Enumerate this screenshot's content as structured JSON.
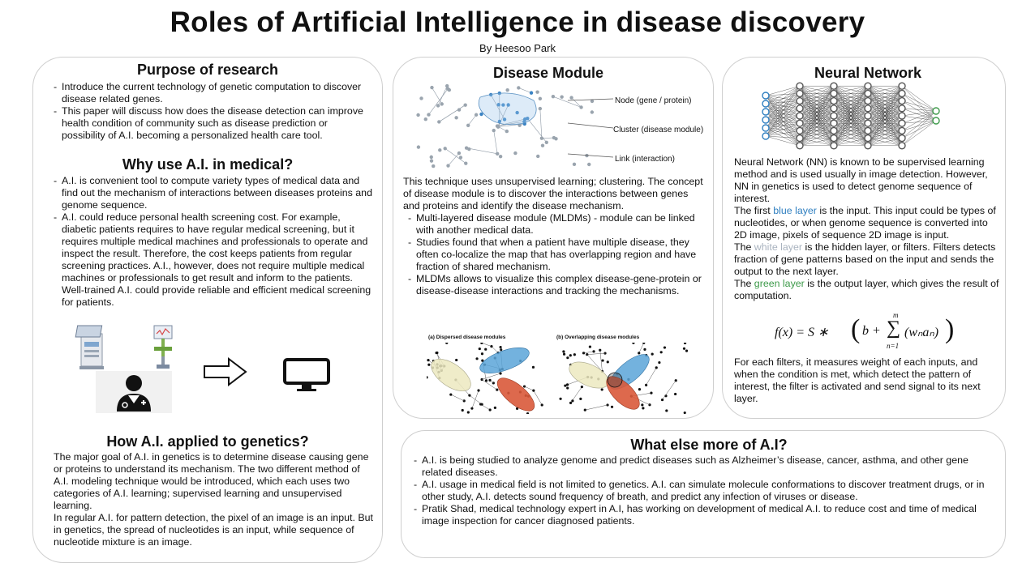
{
  "poster": {
    "title": "Roles of Artificial Intelligence in disease discovery",
    "author": "By Heesoo Park"
  },
  "purpose": {
    "heading": "Purpose of research",
    "items": [
      "Introduce the current technology of genetic computation to discover disease related genes.",
      "This paper will discuss how does the disease detection can improve health condition of community such as disease prediction or possibility of A.I. becoming a personalized health care tool."
    ]
  },
  "why": {
    "heading": "Why use A.I. in medical?",
    "items": [
      "A.I. is convenient tool to compute variety types of medical data and find out the mechanism of interactions between diseases proteins and genome sequence.",
      "A.I. could reduce personal health screening cost. For example, diabetic patients requires to have regular medical screening, but it requires multiple medical machines and professionals to operate and inspect the result. Therefore, the cost keeps patients from regular screening practices. A.I., however, does not require multiple medical machines or professionals to get result and inform to the patients. Well-trained A.I. could provide reliable and efficient medical screening for patients."
    ],
    "icons": [
      "medical-machine-icon",
      "doctor-icon",
      "right-arrow-icon",
      "computer-monitor-icon"
    ]
  },
  "genetics": {
    "heading": "How A.I. applied to genetics?",
    "paragraphs": [
      "The major goal of A.I. in genetics is to determine disease causing gene or proteins to understand its mechanism. The two different method of A.I. modeling technique would be introduced, which each uses two categories of A.I. learning; supervised learning and unsupervised learning.",
      "In regular A.I. for pattern detection, the pixel of an image is an input. But in genetics, the spread of nucleotides is an input, while sequence of nucleotide mixture is an image."
    ]
  },
  "module": {
    "heading": "Disease Module",
    "labels": {
      "node": "Node (gene / protein)",
      "cluster": "Cluster (disease module)",
      "link": "Link (interaction)"
    },
    "intro": "This technique uses unsupervised learning; clustering. The concept of disease module is to discover the interactions between genes and proteins and identify the disease mechanism.",
    "items": [
      "Multi-layered disease module (MLDMs) - module can be linked with another medical data.",
      "Studies found that when a patient have multiple disease, they often co-localize the map that has overlapping region and have fraction of shared mechanism.",
      "MLDMs allows to visualize this complex disease-gene-protein or disease-disease interactions and tracking the mechanisms."
    ],
    "fig_a": "(a) Dispersed disease modules",
    "fig_b": "(b) Overlapping disease modules"
  },
  "nn": {
    "heading": "Neural Network",
    "p1": "Neural Network (NN) is known to be supervised learning method and is used usually in image detection. However, NN in genetics is used to detect genome sequence of interest.",
    "blue_pre": "The first ",
    "blue": "blue layer",
    "blue_post": " is the input. This input could be types of nucleotides, or when genome sequence is converted into 2D image, pixels of sequence 2D image is input.",
    "white_pre": "The ",
    "white": "white layer",
    "white_post": " is the hidden layer, or filters. Filters detects fraction of gene patterns based on the input and sends the output to the next layer.",
    "green_pre": "The ",
    "green": "green layer",
    "green_post": " is the output layer, which gives the result of computation.",
    "formula": {
      "lhs": "f(x) = S ∗",
      "b": "b +",
      "sum_top": "m",
      "sum_bottom": "n=1",
      "term": "(wₙaₙ)"
    },
    "p2": "For each filters, it measures weight of each inputs, and when the condition is met, which detect the pattern of interest, the filter is activated and send signal to its next layer."
  },
  "more": {
    "heading": "What else more of A.I?",
    "items": [
      "A.I. is being studied to analyze genome and predict diseases such as Alzheimer’s disease, cancer, asthma, and other gene related diseases.",
      "A.I. usage in medical field is not limited to genetics. A.I. can simulate molecule conformations to discover treatment drugs, or in other study, A.I. detects sound frequency of breath, and predict any infection of viruses or disease.",
      "Pratik Shad, medical technology expert in A.I, has working on development of medical A.I. to reduce cost and time of medical image inspection for cancer diagnosed patients."
    ]
  },
  "colors": {
    "input_layer": "#2f7fc0",
    "output_layer": "#3d9a4a",
    "module_blue": "#5aa4d8",
    "module_red": "#d9593a",
    "module_yellow": "#ece9c0"
  }
}
